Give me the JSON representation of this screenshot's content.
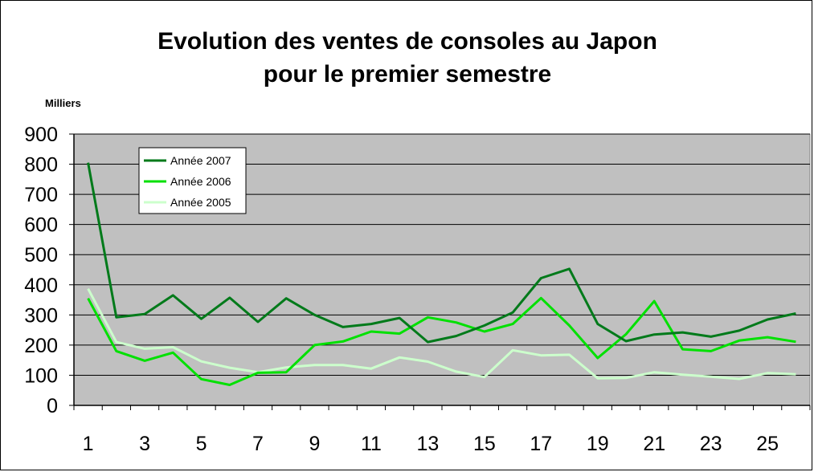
{
  "chart_data": {
    "type": "line",
    "title_line1": "Evolution des ventes de consoles au Japon",
    "title_line2": "pour le premier semestre",
    "unit_label": "Milliers",
    "x": [
      1,
      2,
      3,
      4,
      5,
      6,
      7,
      8,
      9,
      10,
      11,
      12,
      13,
      14,
      15,
      16,
      17,
      18,
      19,
      20,
      21,
      22,
      23,
      24,
      25,
      26
    ],
    "x_tick_labels": [
      "1",
      "3",
      "5",
      "7",
      "9",
      "11",
      "13",
      "15",
      "17",
      "19",
      "21",
      "23",
      "25"
    ],
    "y_tick_labels": [
      "0",
      "100",
      "200",
      "300",
      "400",
      "500",
      "600",
      "700",
      "800",
      "900"
    ],
    "ylim": [
      0,
      900
    ],
    "grid": true,
    "legend_position": "top-left",
    "background_color": "#c0c0c0",
    "series": [
      {
        "name": "Année 2007",
        "color": "#007a1a",
        "values": [
          805,
          292,
          303,
          365,
          287,
          357,
          277,
          355,
          300,
          260,
          270,
          290,
          210,
          230,
          265,
          308,
          422,
          453,
          270,
          213,
          235,
          242,
          228,
          248,
          285,
          305
        ]
      },
      {
        "name": "Année 2006",
        "color": "#00e000",
        "values": [
          355,
          180,
          148,
          175,
          87,
          68,
          108,
          110,
          200,
          212,
          245,
          238,
          292,
          275,
          245,
          270,
          356,
          265,
          157,
          236,
          346,
          186,
          180,
          215,
          226,
          211
        ]
      },
      {
        "name": "Année 2005",
        "color": "#ccffcc",
        "values": [
          387,
          210,
          188,
          193,
          146,
          125,
          110,
          126,
          134,
          134,
          122,
          159,
          145,
          112,
          94,
          183,
          166,
          168,
          90,
          91,
          110,
          102,
          95,
          88,
          107,
          103
        ]
      }
    ]
  }
}
